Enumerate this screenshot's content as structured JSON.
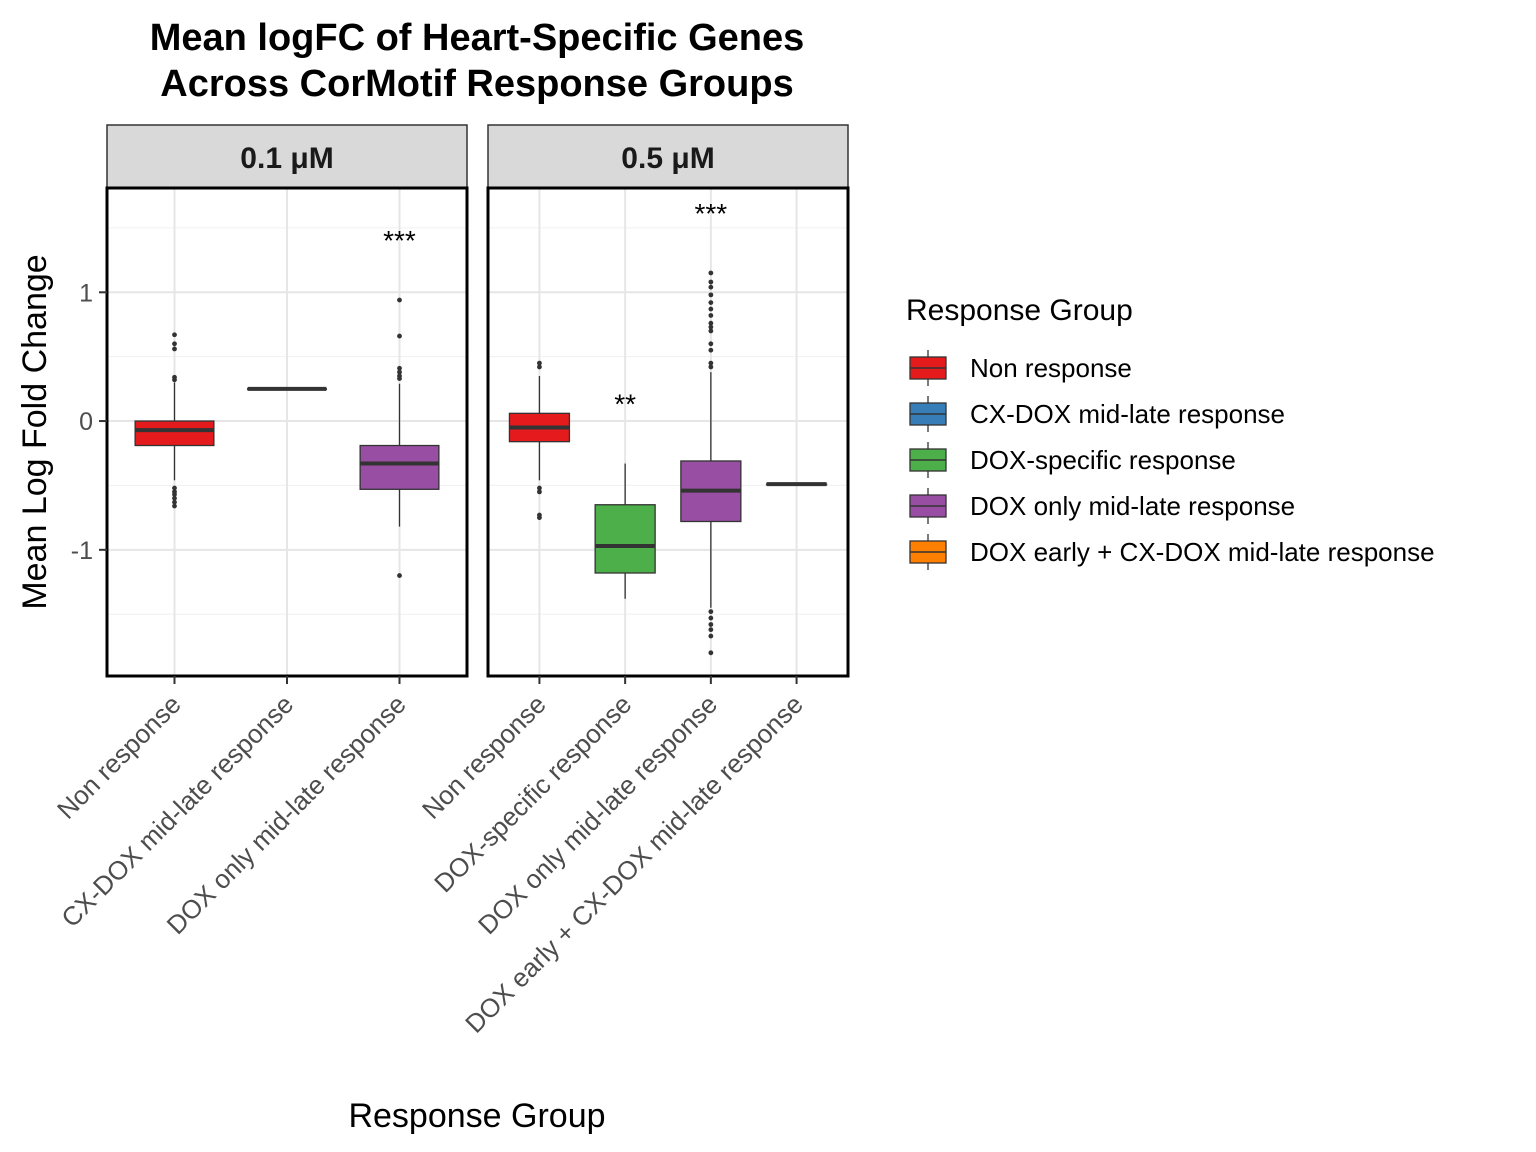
{
  "chart_data": {
    "type": "box",
    "title": [
      "Mean logFC of Heart-Specific Genes",
      "Across CorMotif Response Groups"
    ],
    "xlabel": "Response Group",
    "ylabel": "Mean Log Fold Change",
    "ylim": [
      -1.98,
      1.81
    ],
    "y_ticks": [
      {
        "value": 1,
        "label": "1"
      },
      {
        "value": 0,
        "label": "0"
      },
      {
        "value": -1,
        "label": "-1"
      }
    ],
    "grid": true,
    "legend_position": "right",
    "legend": {
      "title": "Response Group",
      "items": [
        {
          "label": "Non response",
          "color": "#e41a1c"
        },
        {
          "label": "CX-DOX mid-late response",
          "color": "#377eb8"
        },
        {
          "label": "DOX-specific response",
          "color": "#4daf4a"
        },
        {
          "label": "DOX only mid-late response",
          "color": "#984ea3"
        },
        {
          "label": "DOX early + CX-DOX mid-late response",
          "color": "#ff7f00"
        }
      ]
    },
    "facets": [
      {
        "label": "0.1 μM",
        "categories": [
          "Non response",
          "CX-DOX mid-late response",
          "DOX only mid-late response"
        ],
        "boxes": [
          {
            "category": "Non response",
            "color": "#e41a1c",
            "q1": -0.19,
            "median": -0.07,
            "q3": 0.0,
            "whisker_low": -0.46,
            "whisker_high": 0.3,
            "outliers": [
              0.67,
              0.6,
              0.56,
              0.34,
              0.32,
              -0.52,
              -0.55,
              -0.57,
              -0.6,
              -0.63,
              -0.66
            ],
            "significance": ""
          },
          {
            "category": "CX-DOX mid-late response",
            "color": "#377eb8",
            "q1": 0.25,
            "median": 0.25,
            "q3": 0.25,
            "whisker_low": 0.25,
            "whisker_high": 0.25,
            "outliers": [],
            "significance": ""
          },
          {
            "category": "DOX only mid-late response",
            "color": "#984ea3",
            "q1": -0.53,
            "median": -0.33,
            "q3": -0.19,
            "whisker_low": -0.82,
            "whisker_high": 0.29,
            "outliers": [
              0.94,
              0.66,
              0.41,
              0.38,
              0.35,
              0.33,
              -1.2
            ],
            "significance": "***"
          }
        ]
      },
      {
        "label": "0.5 μM",
        "categories": [
          "Non response",
          "DOX-specific response",
          "DOX only mid-late response",
          "DOX early + CX-DOX mid-late response"
        ],
        "boxes": [
          {
            "category": "Non response",
            "color": "#e41a1c",
            "q1": -0.16,
            "median": -0.05,
            "q3": 0.06,
            "whisker_low": -0.46,
            "whisker_high": 0.35,
            "outliers": [
              0.45,
              0.42,
              -0.52,
              -0.55,
              -0.73,
              -0.75
            ],
            "significance": ""
          },
          {
            "category": "DOX-specific response",
            "color": "#4daf4a",
            "q1": -1.18,
            "median": -0.97,
            "q3": -0.65,
            "whisker_low": -1.38,
            "whisker_high": -0.33,
            "outliers": [],
            "significance": "**"
          },
          {
            "category": "DOX only mid-late response",
            "color": "#984ea3",
            "q1": -0.78,
            "median": -0.54,
            "q3": -0.31,
            "whisker_low": -1.45,
            "whisker_high": 0.38,
            "outliers": [
              1.15,
              1.08,
              1.04,
              0.98,
              0.92,
              0.87,
              0.82,
              0.76,
              0.73,
              0.7,
              0.6,
              0.55,
              0.45,
              0.42,
              -1.48,
              -1.53,
              -1.58,
              -1.62,
              -1.67,
              -1.8
            ],
            "significance": "***"
          },
          {
            "category": "DOX early + CX-DOX mid-late response",
            "color": "#ff7f00",
            "q1": -0.49,
            "median": -0.49,
            "q3": -0.49,
            "whisker_low": -0.49,
            "whisker_high": -0.49,
            "outliers": [],
            "significance": ""
          }
        ]
      }
    ]
  }
}
